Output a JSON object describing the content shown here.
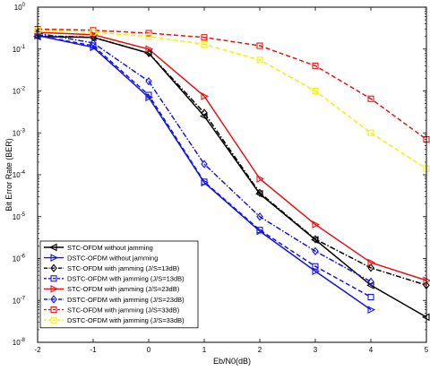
{
  "chart_data": {
    "type": "line",
    "xlabel": "Eb/N0(dB)",
    "ylabel": "Bit Error Rate  (BER)",
    "xlim": [
      -2,
      5
    ],
    "ylim": [
      1e-08,
      1
    ],
    "yscale": "log",
    "xticks": [
      -2,
      -1,
      0,
      1,
      2,
      3,
      4,
      5
    ],
    "xtick_labels": [
      "-2",
      "-1",
      "0",
      "1",
      "2",
      "3",
      "4",
      "5"
    ],
    "yticks": [
      {
        "base": "10",
        "exp": "0"
      },
      {
        "base": "10",
        "exp": "-1"
      },
      {
        "base": "10",
        "exp": "-2"
      },
      {
        "base": "10",
        "exp": "-3"
      },
      {
        "base": "10",
        "exp": "-4"
      },
      {
        "base": "10",
        "exp": "-5"
      },
      {
        "base": "10",
        "exp": "-6"
      },
      {
        "base": "10",
        "exp": "-7"
      },
      {
        "base": "10",
        "exp": "-8"
      }
    ],
    "legend_position": "bottom-left",
    "series": [
      {
        "name": "STC-OFDM without jamming",
        "color": "#000000",
        "dash": "solid",
        "marker": "triangle-left",
        "x": [
          -2,
          -1,
          0,
          1,
          2,
          3,
          4,
          5
        ],
        "y": [
          0.2,
          0.19,
          0.08,
          0.0025,
          3.5e-05,
          2.8e-06,
          2.3e-07,
          4e-08
        ]
      },
      {
        "name": "DSTC-OFDM without jamming",
        "color": "#1515e6",
        "dash": "solid",
        "marker": "triangle-right",
        "x": [
          -2,
          -1,
          0,
          1,
          2,
          3,
          4
        ],
        "y": [
          0.21,
          0.11,
          0.007,
          6.5e-05,
          4.5e-06,
          5e-07,
          6e-08
        ]
      },
      {
        "name": "STC-OFDM with jamming (J/S=13dB)",
        "color": "#000000",
        "dash": "dashdot",
        "marker": "diamond",
        "x": [
          -2,
          -1,
          0,
          1,
          2,
          3,
          4,
          5
        ],
        "y": [
          0.21,
          0.19,
          0.08,
          0.003,
          3.7e-05,
          2.9e-06,
          6e-07,
          2.3e-07
        ]
      },
      {
        "name": "DSTC-OFDM with jamming (J/S=13dB)",
        "color": "#1515e6",
        "dash": "dashed",
        "marker": "square",
        "x": [
          -2,
          -1,
          0,
          1,
          2,
          3,
          4
        ],
        "y": [
          0.21,
          0.12,
          0.008,
          6.8e-05,
          4.8e-06,
          6.5e-07,
          1.2e-07
        ]
      },
      {
        "name": "STC-OFDM with jamming (J/S=23dB)",
        "color": "#e61515",
        "dash": "solid",
        "marker": "triangle-right",
        "x": [
          -2,
          -1,
          0,
          1,
          2,
          3,
          4,
          5
        ],
        "y": [
          0.25,
          0.22,
          0.1,
          0.0075,
          8e-05,
          6.5e-06,
          8e-07,
          3e-07
        ]
      },
      {
        "name": "DSTC-OFDM with jamming (J/S=23dB)",
        "color": "#1515e6",
        "dash": "dashdot",
        "marker": "diamond",
        "x": [
          -2,
          -1,
          0,
          1,
          2,
          3,
          4
        ],
        "y": [
          0.24,
          0.14,
          0.017,
          0.00018,
          1e-05,
          1.5e-06,
          2.8e-07
        ]
      },
      {
        "name": "STC-OFDM with jamming (J/S=33dB)",
        "color": "#e61515",
        "dash": "dashed",
        "marker": "square",
        "x": [
          -2,
          -1,
          0,
          1,
          2,
          3,
          4,
          5
        ],
        "y": [
          0.3,
          0.28,
          0.24,
          0.19,
          0.12,
          0.04,
          0.0065,
          0.0007
        ]
      },
      {
        "name": "DSTC-OFDM with jamming (J/S=33dB)",
        "color": "#f2f200",
        "dash": "dashed",
        "marker": "square",
        "x": [
          -2,
          -1,
          0,
          1,
          2,
          3,
          4,
          5
        ],
        "y": [
          0.28,
          0.25,
          0.2,
          0.13,
          0.055,
          0.01,
          0.001,
          0.00014
        ]
      }
    ]
  }
}
